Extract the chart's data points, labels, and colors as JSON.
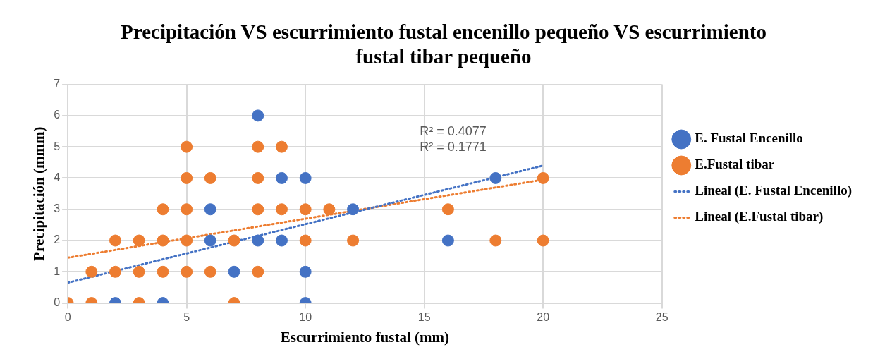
{
  "chart_data": {
    "type": "scatter",
    "title": "Precipitación VS escurrimiento fustal encenillo pequeño VS escurrimiento fustal tibar pequeño",
    "xlabel": "Escurrimiento fustal (mm)",
    "ylabel": "Precipitación (mmm)",
    "xlim": [
      0,
      25
    ],
    "xticks": [
      0,
      5,
      10,
      15,
      20,
      25
    ],
    "ylim": [
      0,
      7
    ],
    "yticks": [
      0,
      1,
      2,
      3,
      4,
      5,
      6,
      7
    ],
    "grid": true,
    "legend": "right",
    "marker": "circle",
    "series": [
      {
        "name": "E. Fustal Encenillo",
        "color": "#4472c4",
        "x": [
          2,
          4,
          10,
          7,
          10,
          6,
          8,
          9,
          16,
          6,
          12,
          9,
          10,
          18,
          8
        ],
        "values": [
          0,
          0,
          0,
          1,
          1,
          2,
          2,
          2,
          2,
          3,
          3,
          4,
          4,
          4,
          6
        ]
      },
      {
        "name": "E.Fustal tibar",
        "color": "#ed7d31",
        "x": [
          0,
          1,
          3,
          7,
          1,
          2,
          3,
          4,
          5,
          6,
          8,
          2,
          3,
          4,
          5,
          7,
          10,
          12,
          18,
          20,
          4,
          5,
          8,
          9,
          10,
          11,
          16,
          5,
          6,
          8,
          20,
          5,
          8,
          9
        ],
        "values": [
          0,
          0,
          0,
          0,
          1,
          1,
          1,
          1,
          1,
          1,
          1,
          2,
          2,
          2,
          2,
          2,
          2,
          2,
          2,
          2,
          3,
          3,
          3,
          3,
          3,
          3,
          3,
          4,
          4,
          4,
          4,
          5,
          5,
          5
        ]
      },
      {
        "name": "Lineal (E. Fustal Encenillo)",
        "type": "line",
        "color": "#4472c4",
        "line_style": "dotted",
        "marker": "none",
        "x": [
          0,
          20
        ],
        "values": [
          0.65,
          4.4
        ]
      },
      {
        "name": "Lineal (E.Fustal tibar)",
        "type": "line",
        "color": "#ed7d31",
        "line_style": "dotted",
        "marker": "none",
        "x": [
          0,
          20
        ],
        "values": [
          1.45,
          3.95
        ]
      }
    ],
    "annotations": [
      "R² = 0.4077",
      "R² = 0.1771"
    ]
  }
}
